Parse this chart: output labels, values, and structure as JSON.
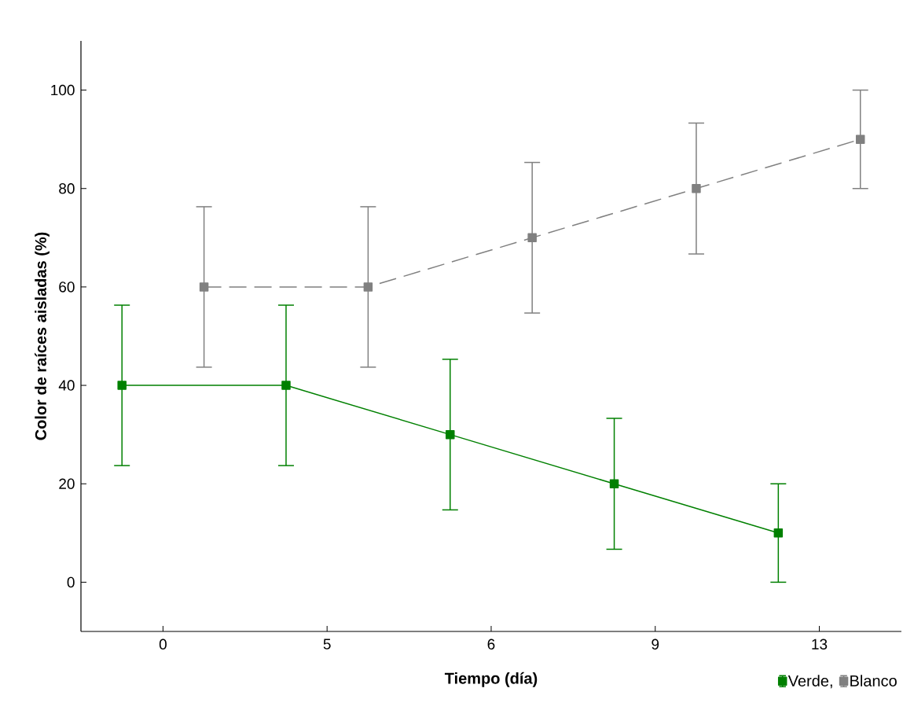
{
  "chart_data": {
    "type": "line",
    "xlabel": "Tiempo (día)",
    "ylabel": "Color de raíces aisladas (%)",
    "categories": [
      "0",
      "5",
      "6",
      "9",
      "13"
    ],
    "ylim": [
      -10,
      110
    ],
    "yticks": [
      0,
      20,
      40,
      60,
      80,
      100
    ],
    "marker": "square",
    "legend": "bottom right",
    "series": [
      {
        "name": "Verde,",
        "color": "#008000",
        "line_style": "solid",
        "values": [
          40,
          40,
          30,
          20,
          10
        ],
        "errors": [
          16.3,
          16.3,
          15.3,
          13.3,
          10
        ]
      },
      {
        "name": "Blanco",
        "color": "#808080",
        "line_style": "dashed",
        "values": [
          60,
          60,
          70,
          80,
          90
        ],
        "errors": [
          16.3,
          16.3,
          15.3,
          13.3,
          10
        ]
      }
    ]
  }
}
